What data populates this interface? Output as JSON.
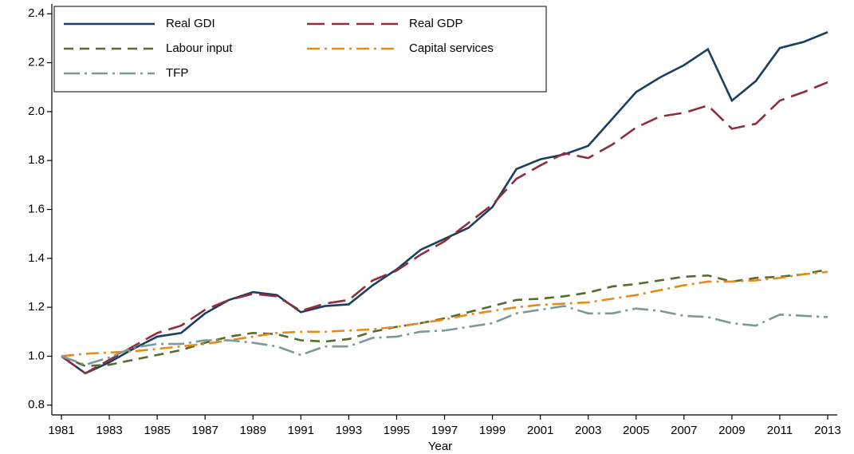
{
  "chart_data": {
    "type": "line",
    "x_label": "Year",
    "x": [
      1981,
      1982,
      1983,
      1984,
      1985,
      1986,
      1987,
      1988,
      1989,
      1990,
      1991,
      1992,
      1993,
      1994,
      1995,
      1996,
      1997,
      1998,
      1999,
      2000,
      2001,
      2002,
      2003,
      2004,
      2005,
      2006,
      2007,
      2008,
      2009,
      2010,
      2011,
      2012,
      2013
    ],
    "xlim": [
      1980.6,
      2013.4
    ],
    "xticks": [
      1981,
      1983,
      1985,
      1987,
      1989,
      1991,
      1993,
      1995,
      1997,
      1999,
      2001,
      2003,
      2005,
      2007,
      2009,
      2011,
      2013
    ],
    "ylim": [
      0.76,
      2.44
    ],
    "yticks": [
      0.8,
      {
        "value": 1,
        "label": "1.0"
      },
      1.2,
      1.4,
      1.6,
      1.8,
      {
        "value": 2,
        "label": "2.0"
      },
      2.2,
      2.4
    ],
    "series": [
      {
        "name": "Real GDI",
        "color": "#1b3f60",
        "values": [
          1.0,
          0.93,
          0.975,
          1.03,
          1.08,
          1.095,
          1.175,
          1.23,
          1.262,
          1.25,
          1.18,
          1.205,
          1.212,
          1.29,
          1.355,
          1.435,
          1.48,
          1.525,
          1.61,
          1.765,
          1.805,
          1.825,
          1.86,
          1.97,
          2.08,
          2.14,
          2.19,
          2.255,
          2.045,
          2.125,
          2.26,
          2.285,
          2.325
        ]
      },
      {
        "name": "Real GDP",
        "color": "#8f2d3c",
        "values": [
          1.0,
          0.93,
          0.985,
          1.04,
          1.095,
          1.125,
          1.19,
          1.23,
          1.255,
          1.245,
          1.185,
          1.215,
          1.23,
          1.31,
          1.35,
          1.415,
          1.47,
          1.545,
          1.62,
          1.725,
          1.78,
          1.83,
          1.81,
          1.865,
          1.935,
          1.98,
          1.995,
          2.025,
          1.93,
          1.95,
          2.045,
          2.08,
          2.12
        ]
      },
      {
        "name": "Labour input",
        "color": "#556b2f",
        "values": [
          1.0,
          0.96,
          0.965,
          0.985,
          1.005,
          1.025,
          1.055,
          1.08,
          1.095,
          1.09,
          1.065,
          1.06,
          1.07,
          1.1,
          1.12,
          1.135,
          1.155,
          1.18,
          1.205,
          1.23,
          1.235,
          1.245,
          1.26,
          1.285,
          1.295,
          1.31,
          1.325,
          1.33,
          1.305,
          1.32,
          1.325,
          1.335,
          1.355
        ]
      },
      {
        "name": "Capital services",
        "color": "#e38b1f",
        "values": [
          1.0,
          1.01,
          1.015,
          1.02,
          1.03,
          1.04,
          1.05,
          1.065,
          1.08,
          1.095,
          1.1,
          1.1,
          1.105,
          1.11,
          1.12,
          1.135,
          1.15,
          1.17,
          1.185,
          1.2,
          1.21,
          1.215,
          1.22,
          1.235,
          1.25,
          1.27,
          1.29,
          1.305,
          1.305,
          1.31,
          1.32,
          1.335,
          1.345
        ]
      },
      {
        "name": "TFP",
        "color": "#7a9a96",
        "values": [
          1.0,
          0.965,
          0.995,
          1.035,
          1.05,
          1.05,
          1.065,
          1.065,
          1.055,
          1.04,
          1.005,
          1.04,
          1.04,
          1.075,
          1.08,
          1.1,
          1.105,
          1.12,
          1.135,
          1.175,
          1.19,
          1.205,
          1.175,
          1.175,
          1.195,
          1.185,
          1.165,
          1.16,
          1.135,
          1.125,
          1.17,
          1.165,
          1.16
        ]
      }
    ]
  }
}
